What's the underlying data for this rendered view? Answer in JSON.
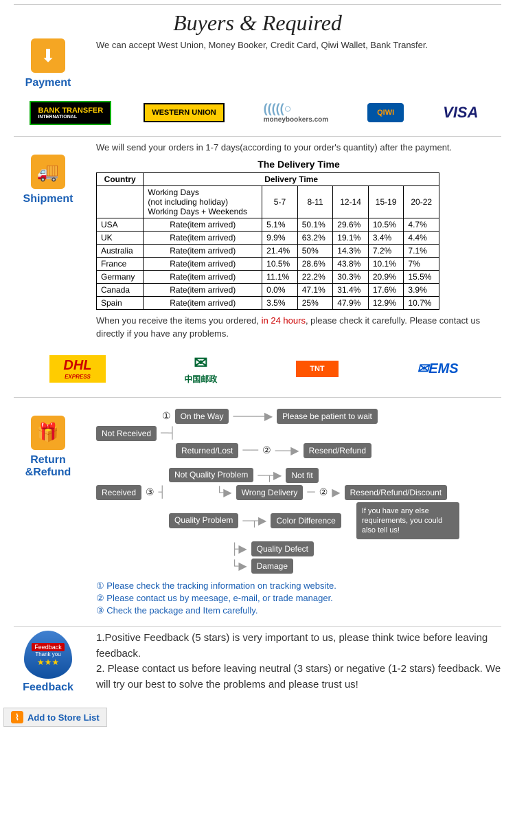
{
  "header_title": "Buyers & Required",
  "payment": {
    "title": "Payment",
    "text": "We can accept West Union, Money Booker, Credit Card, Qiwi Wallet, Bank Transfer.",
    "logos": {
      "bank_transfer_pre": "BANK",
      "bank_transfer_main": "TRANSFER",
      "bank_transfer_sub": "INTERNATIONAL",
      "wu": "WESTERN UNION",
      "mb": "(((((○",
      "mb_sub": "moneybookers.com",
      "qiwi": "QIWI",
      "visa": "VISA"
    }
  },
  "shipment": {
    "title": "Shipment",
    "intro": "We will send your orders in 1-7 days(according to your order's quantity) after the payment.",
    "table_title": "The Delivery Time",
    "col_country": "Country",
    "col_delivery": "Delivery Time",
    "working_days_1": "Working Days",
    "working_days_2": "(not including holiday)",
    "working_days_3": "Working Days + Weekends",
    "periods": [
      "5-7",
      "8-11",
      "12-14",
      "15-19",
      "20-22"
    ],
    "rate_label": "Rate(item arrived)",
    "rows": [
      {
        "c": "USA",
        "v": [
          "5.1%",
          "50.1%",
          "29.6%",
          "10.5%",
          "4.7%"
        ]
      },
      {
        "c": "UK",
        "v": [
          "9.9%",
          "63.2%",
          "19.1%",
          "3.4%",
          "4.4%"
        ]
      },
      {
        "c": "Australia",
        "v": [
          "21.4%",
          "50%",
          "14.3%",
          "7.2%",
          "7.1%"
        ]
      },
      {
        "c": "France",
        "v": [
          "10.5%",
          "28.6%",
          "43.8%",
          "10.1%",
          "7%"
        ]
      },
      {
        "c": "Germany",
        "v": [
          "11.1%",
          "22.2%",
          "30.3%",
          "20.9%",
          "15.5%"
        ]
      },
      {
        "c": "Canada",
        "v": [
          "0.0%",
          "47.1%",
          "31.4%",
          "17.6%",
          "3.9%"
        ]
      },
      {
        "c": "Spain",
        "v": [
          "3.5%",
          "25%",
          "47.9%",
          "12.9%",
          "10.7%"
        ]
      }
    ],
    "after_1": "When you receive the items you ordered, ",
    "after_red": "in 24 hours",
    "after_2": ", please check it carefully. Please contact us directly if you have any problems.",
    "carriers": {
      "dhl": "DHL",
      "dhl_sub": "EXPRESS",
      "chinapost": "中国邮政",
      "tnt": "TNT",
      "ems": "✉EMS"
    }
  },
  "return": {
    "title": "Return &Refund",
    "num1": "①",
    "num2": "②",
    "num3": "③",
    "not_received": "Not Received",
    "on_the_way": "On the Way",
    "patient": "Please be patient to wait",
    "returned": "Returned/Lost",
    "resend": "Resend/Refund",
    "received": "Received",
    "not_quality": "Not Quality Problem",
    "not_fit": "Not fit",
    "wrong_delivery": "Wrong Delivery",
    "quality": "Quality Problem",
    "color_diff": "Color Difference",
    "quality_defect": "Quality Defect",
    "damage": "Damage",
    "resend_discount": "Resend/Refund/Discount",
    "speech": "If you have any else requirements, you could also tell us!",
    "legend1": "Please check the tracking information on tracking website.",
    "legend2": "Please contact us by meesage, e-mail, or trade manager.",
    "legend3": "Check the package and Item carefully."
  },
  "feedback": {
    "title": "Feedback",
    "badge_top": "Feedback",
    "badge_mid": "Thank you",
    "p1": "1.Positive Feedback (5 stars) is very important to us, please think twice before leaving feedback.",
    "p2": "2. Please contact us before leaving neutral (3 stars) or negative (1-2 stars) feedback. We will try our best to solve the problems and please trust us!"
  },
  "add_store": "Add to Store List"
}
